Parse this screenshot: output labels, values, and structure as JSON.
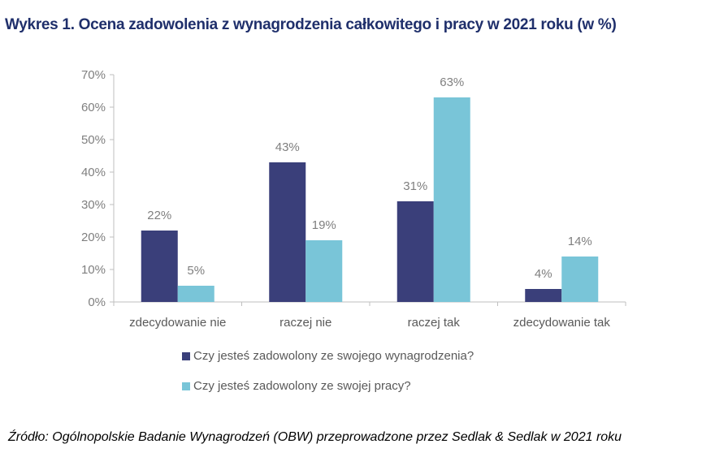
{
  "chart_data": {
    "type": "bar",
    "title": "Wykres 1. Ocena zadowolenia z wynagrodzenia całkowitego i pracy w 2021 roku (w %)",
    "categories": [
      "zdecydowanie nie",
      "raczej nie",
      "raczej tak",
      "zdecydowanie tak"
    ],
    "series": [
      {
        "name": "Czy jesteś zadowolony ze swojego wynagrodzenia?",
        "values": [
          22,
          43,
          31,
          4
        ],
        "labels": [
          "22%",
          "43%",
          "31%",
          "4%"
        ],
        "color": "#3a3f7a"
      },
      {
        "name": "Czy jesteś zadowolony ze swojej pracy?",
        "values": [
          5,
          19,
          63,
          14
        ],
        "labels": [
          "5%",
          "19%",
          "63%",
          "14%"
        ],
        "color": "#79c5d8"
      }
    ],
    "yticks": [
      "0%",
      "10%",
      "20%",
      "30%",
      "40%",
      "50%",
      "60%",
      "70%"
    ],
    "ylim": [
      0,
      70
    ],
    "grid": false,
    "legend_position": "bottom",
    "source": "Źródło: Ogólnopolskie Badanie Wynagrodzeń (OBW) przeprowadzone przez Sedlak & Sedlak w 2021 roku"
  }
}
